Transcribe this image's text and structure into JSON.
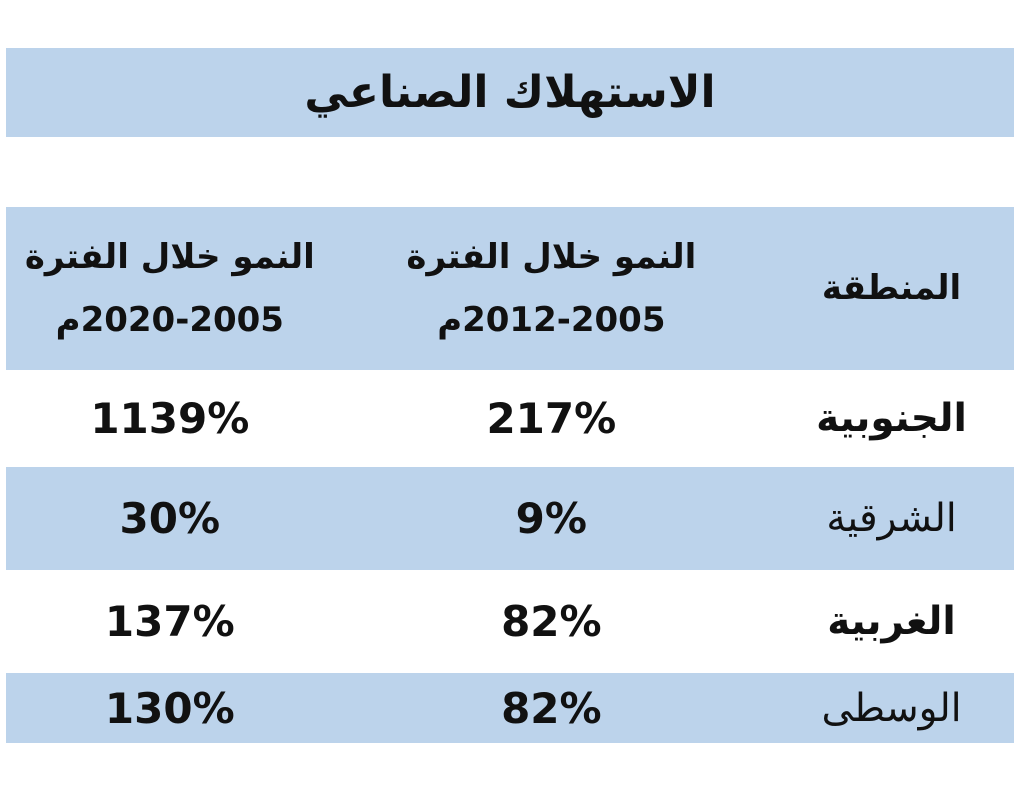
{
  "title": "الاستهلاك الصناعي",
  "colors": {
    "band_blue": "#BCD3EB",
    "text": "#111111",
    "background": "#FFFFFF"
  },
  "table": {
    "header": {
      "region_label": "المنطقة",
      "col_growth_2005_2012": {
        "line1": "النمو خلال الفترة",
        "line2": "2012-2005م"
      },
      "col_growth_2005_2020": {
        "line1": "النمو خلال الفترة",
        "line2": "2020-2005م"
      }
    },
    "rows": [
      {
        "region": "الجنوبية",
        "growth_2005_2012": "217%",
        "growth_2005_2020": "1139%"
      },
      {
        "region": "الشرقية",
        "growth_2005_2012": "9%",
        "growth_2005_2020": "30%"
      },
      {
        "region": "الغربية",
        "growth_2005_2012": "82%",
        "growth_2005_2020": "137%"
      },
      {
        "region": "الوسطى",
        "growth_2005_2012": "82%",
        "growth_2005_2020": "130%"
      }
    ]
  },
  "chart_data": {
    "type": "table",
    "title": "الاستهلاك الصناعي",
    "columns": [
      "المنطقة",
      "النمو خلال الفترة 2005-2012م",
      "النمو خلال الفترة 2005-2020م"
    ],
    "rows": [
      [
        "الجنوبية",
        "217%",
        "1139%"
      ],
      [
        "الشرقية",
        "9%",
        "30%"
      ],
      [
        "الغربية",
        "82%",
        "137%"
      ],
      [
        "الوسطى",
        "82%",
        "130%"
      ]
    ]
  }
}
